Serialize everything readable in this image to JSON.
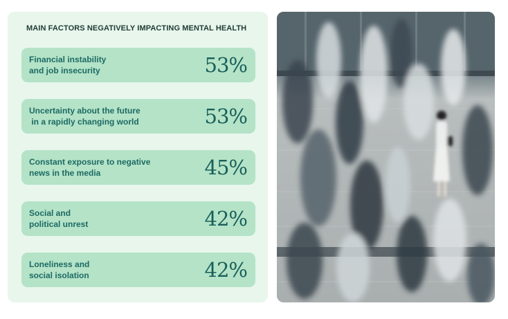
{
  "title": "MAIN FACTORS NEGATIVELY IMPACTING MENTAL HEALTH",
  "factors": [
    {
      "label": "Financial instability\nand job insecurity",
      "value": "53%"
    },
    {
      "label": "Uncertainty about the future\n in a rapidly changing world",
      "value": "53%"
    },
    {
      "label": "Constant exposure to negative\nnews in the media",
      "value": "45%"
    },
    {
      "label": "Social and\npolitical unrest",
      "value": "42%"
    },
    {
      "label": "Loneliness and\nsocial isolation",
      "value": "42%"
    }
  ],
  "colors": {
    "panel_bg": "#e8f6ec",
    "card_bg": "#b4e3c8",
    "text_dark": "#1f3b33",
    "text_teal": "#1d6a63"
  },
  "photo": {
    "subject": "blurred-crowd-photo"
  }
}
